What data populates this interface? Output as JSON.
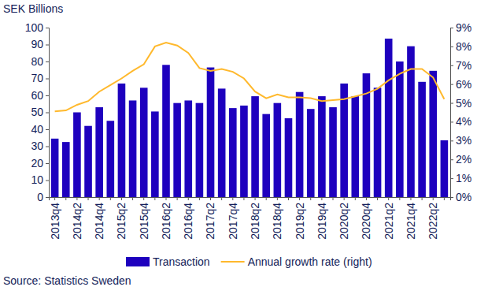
{
  "chart_data": {
    "type": "bar",
    "y_label": "SEK Billions",
    "annotations": [
      "Source: Statistics Sweden"
    ],
    "categories": [
      "2013q4",
      null,
      "2014q2",
      null,
      "2014q4",
      null,
      "2015q2",
      null,
      "2015q4",
      null,
      "2016q2",
      null,
      "2016q4",
      null,
      "2017q2",
      null,
      "2017q4",
      null,
      "2018q2",
      null,
      "2018q4",
      null,
      "2019q2",
      null,
      "2019q4",
      null,
      "2020q2",
      null,
      "2020q4",
      null,
      "2021q2",
      null,
      "2021q4",
      null,
      "2022q2",
      null
    ],
    "series": [
      {
        "name": "Transaction",
        "type": "bar",
        "color": "#1e00be",
        "values": [
          34.5,
          32.5,
          50,
          42,
          53,
          45,
          67,
          57,
          64.5,
          50.5,
          78,
          55.5,
          57,
          55.5,
          76.5,
          64,
          52.5,
          54,
          59.5,
          49,
          55.5,
          46.5,
          62,
          52,
          59.5,
          53,
          67,
          59.5,
          73,
          64.5,
          93.5,
          80,
          89,
          68,
          74.5,
          33.5
        ]
      },
      {
        "name": "Annual growth rate (right)",
        "type": "line",
        "axis": "y2",
        "color": "#ffb92d",
        "values": [
          4.55,
          4.6,
          4.9,
          5.1,
          5.6,
          5.95,
          6.3,
          6.7,
          7.05,
          8.0,
          8.2,
          8.05,
          7.65,
          6.85,
          6.7,
          6.8,
          6.65,
          6.3,
          5.6,
          5.25,
          5.45,
          5.3,
          5.3,
          5.25,
          5.1,
          5.15,
          5.2,
          5.35,
          5.5,
          5.75,
          6.2,
          6.55,
          6.8,
          6.8,
          6.35,
          5.2
        ]
      }
    ],
    "ylim": [
      0,
      100
    ],
    "yticks": [
      0,
      10,
      20,
      30,
      40,
      50,
      60,
      70,
      80,
      90,
      100
    ],
    "y2lim": [
      0,
      9
    ],
    "y2ticks": [
      {
        "value": 0,
        "label": "0%"
      },
      {
        "value": 1,
        "label": "1%"
      },
      {
        "value": 2,
        "label": "2%"
      },
      {
        "value": 3,
        "label": "3%"
      },
      {
        "value": 4,
        "label": "4%"
      },
      {
        "value": 5,
        "label": "5%"
      },
      {
        "value": 6,
        "label": "6%"
      },
      {
        "value": 7,
        "label": "7%"
      },
      {
        "value": 8,
        "label": "8%"
      },
      {
        "value": 9,
        "label": "9%"
      }
    ],
    "grid": false,
    "legend": "bottom"
  }
}
